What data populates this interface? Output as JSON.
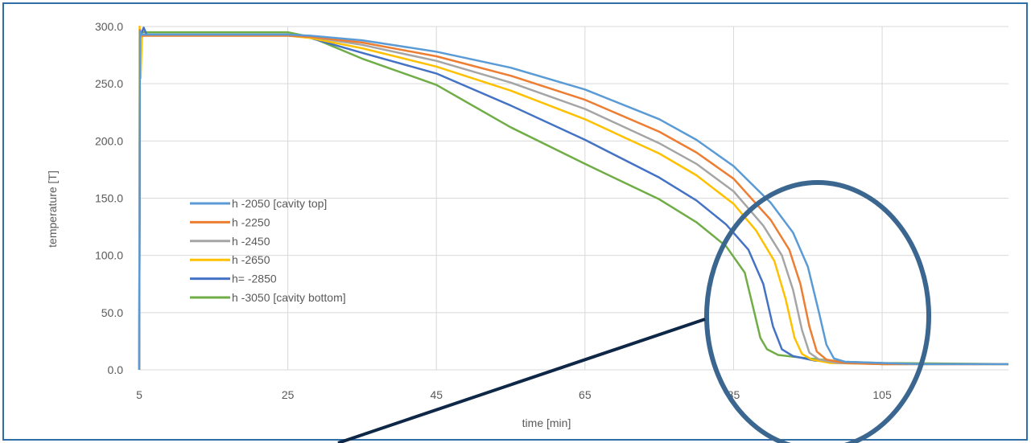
{
  "chart_data": {
    "type": "line",
    "title": "",
    "xlabel": "time [min]",
    "ylabel": "temperature [T]",
    "xlim": [
      5,
      122
    ],
    "ylim": [
      0,
      300
    ],
    "x_ticks": [
      5,
      25,
      45,
      65,
      85,
      105
    ],
    "x_tick_labels": [
      "5",
      "25",
      "45",
      "65",
      "85",
      "105"
    ],
    "y_ticks": [
      0,
      50,
      100,
      150,
      200,
      250,
      300
    ],
    "y_tick_labels": [
      "0.0",
      "50.0",
      "100.0",
      "150.0",
      "200.0",
      "250.0",
      "300.0"
    ],
    "grid": true,
    "legend_position": "left-center",
    "series": [
      {
        "name": "h -2050 [cavity top]",
        "color": "#5b9bd5",
        "x": [
          5,
          5.1,
          5.3,
          6,
          10,
          20,
          25,
          28,
          35,
          45,
          55,
          65,
          75,
          80,
          85,
          90,
          93,
          95,
          96.5,
          97.5,
          98.5,
          100,
          105,
          110,
          122
        ],
        "y": [
          0,
          296,
          293,
          293,
          293,
          293,
          293,
          292,
          288,
          278,
          264,
          245,
          219,
          201,
          178,
          146,
          120,
          90,
          50,
          22,
          10,
          7,
          6,
          5,
          5
        ]
      },
      {
        "name": "h -2250",
        "color": "#ed7d31",
        "x": [
          5,
          5.1,
          5.3,
          6,
          10,
          20,
          25,
          28,
          35,
          45,
          55,
          65,
          75,
          80,
          85,
          90,
          92.5,
          94,
          95.2,
          96.2,
          97.5,
          100,
          105,
          110,
          122
        ],
        "y": [
          0,
          297,
          292,
          292,
          292,
          292,
          292,
          291,
          286,
          274,
          257,
          236,
          208,
          190,
          167,
          131,
          105,
          75,
          38,
          16,
          9,
          6,
          5,
          5,
          5
        ]
      },
      {
        "name": "h -2450",
        "color": "#a5a5a5",
        "x": [
          5,
          5.1,
          5.3,
          6,
          10,
          20,
          25,
          28,
          35,
          45,
          55,
          65,
          75,
          80,
          85,
          89,
          91.5,
          93,
          94.2,
          95.2,
          96.5,
          99,
          105,
          110,
          122
        ],
        "y": [
          0,
          297,
          292,
          292,
          292,
          292,
          292,
          291,
          284,
          270,
          251,
          228,
          198,
          180,
          156,
          126,
          100,
          70,
          35,
          15,
          9,
          6,
          5,
          5,
          5
        ]
      },
      {
        "name": "h -2650",
        "color": "#ffc000",
        "x": [
          5,
          5.05,
          5.2,
          5.35,
          5.5,
          6,
          10,
          20,
          25,
          28,
          35,
          45,
          55,
          65,
          75,
          80,
          85,
          88,
          90.5,
          92,
          93.2,
          94.2,
          95.5,
          98,
          105,
          122
        ],
        "y": [
          0,
          300,
          255,
          290,
          292,
          292,
          292,
          292,
          292,
          290,
          281,
          265,
          244,
          219,
          189,
          170,
          145,
          122,
          95,
          62,
          28,
          14,
          9,
          6,
          5,
          5
        ]
      },
      {
        "name": "h= -2850",
        "color": "#4472c4",
        "x": [
          5,
          5.1,
          5.3,
          5.6,
          6,
          10,
          20,
          25,
          28,
          35,
          45,
          55,
          65,
          75,
          80,
          84,
          87,
          89,
          90.3,
          91.5,
          93,
          96,
          105,
          122
        ],
        "y": [
          0,
          296,
          294,
          299,
          293,
          293,
          293,
          293,
          290,
          277,
          259,
          231,
          201,
          168,
          148,
          127,
          105,
          75,
          38,
          18,
          12,
          8,
          5,
          5
        ]
      },
      {
        "name": "h -3050 [cavity bottom]",
        "color": "#70ad47",
        "x": [
          5,
          5.1,
          5.3,
          6,
          10,
          20,
          25,
          28,
          35,
          45,
          55,
          65,
          75,
          80,
          84,
          86.5,
          87.8,
          88.6,
          89.5,
          91,
          95,
          100,
          105,
          122
        ],
        "y": [
          0,
          296,
          295,
          295,
          295,
          295,
          295,
          291,
          272,
          249,
          212,
          180,
          149,
          129,
          108,
          85,
          50,
          28,
          18,
          13,
          10,
          7,
          6,
          5
        ]
      }
    ]
  }
}
